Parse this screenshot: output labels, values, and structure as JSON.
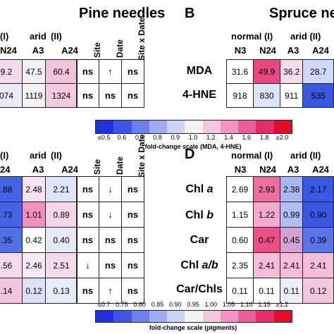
{
  "titles": {
    "left": "Pine needles",
    "right": "Spruce ne"
  },
  "panel_letters": {
    "b": "B",
    "d": "D"
  },
  "pine_top": {
    "group_headers": [
      "(I)",
      "arid",
      "(II)"
    ],
    "col_headers": [
      "N24",
      "A3",
      "A24"
    ],
    "rows": [
      [
        {
          "v": "9.2",
          "c": "#f6d9ea"
        },
        {
          "v": "47.5",
          "c": "#f2f2f8"
        },
        {
          "v": "60.4",
          "c": "#f3c2dc"
        }
      ],
      [
        {
          "v": "074",
          "c": "#eaeaf8"
        },
        {
          "v": "1119",
          "c": "#f7f1f6"
        },
        {
          "v": "1324",
          "c": "#f3cadf"
        }
      ]
    ]
  },
  "stat_top": {
    "headers": [
      "Site",
      "Date",
      "Site x Date"
    ],
    "rows": [
      [
        "ns",
        "↑",
        "ns"
      ],
      [
        "ns",
        "ns",
        "ns"
      ]
    ]
  },
  "spruce_top": {
    "group_headers": [
      {
        "label": "normal",
        "num": "(I)"
      },
      {
        "label": "arid",
        "num": "(II)"
      }
    ],
    "col_headers": [
      "N3",
      "N24",
      "A3",
      "A24"
    ],
    "row_labels": [
      "MDA",
      "4-HNE"
    ],
    "rows": [
      [
        {
          "v": "31.6",
          "c": "#ffffff"
        },
        {
          "v": "49.9",
          "c": "#e8487f"
        },
        {
          "v": "36.2",
          "c": "#f8dcea"
        },
        {
          "v": "28.7",
          "c": "#cfd8f6"
        }
      ],
      [
        {
          "v": "918",
          "c": "#ffffff"
        },
        {
          "v": "830",
          "c": "#dee4f7"
        },
        {
          "v": "911",
          "c": "#ffffff"
        },
        {
          "v": "535",
          "c": "#3a57e0"
        }
      ]
    ]
  },
  "scale_top": {
    "ticks": [
      "≤0.5",
      "0.6",
      "0.7",
      "0.8",
      "0.9",
      "1.0",
      "1.2",
      "1.4",
      "1.6",
      "1.8",
      "≥2.0"
    ],
    "label": "fold-change scale (MDA, 4-HNE)",
    "colors": [
      "#2233dd",
      "#3f55e6",
      "#6b80ee",
      "#9cabf2",
      "#cdd5f7",
      "#f3f3f3",
      "#f6c6df",
      "#f094c2",
      "#eb5f99",
      "#e62d6b",
      "#e30c2a"
    ]
  },
  "pine_bottom": {
    "group_headers": [
      "(I)",
      "arid",
      "(II)"
    ],
    "col_headers": [
      "24",
      "A3",
      "A24"
    ],
    "rows": [
      [
        {
          "v": ".88",
          "c": "#4563e4"
        },
        {
          "v": "2.48",
          "c": "#f7e4ee"
        },
        {
          "v": "2.21",
          "c": "#dfe5f8"
        }
      ],
      [
        {
          "v": ".73",
          "c": "#4563e4"
        },
        {
          "v": "1.01",
          "c": "#f190bf"
        },
        {
          "v": "0.89",
          "c": "#f5d6e6"
        }
      ],
      [
        {
          "v": ".35",
          "c": "#5470e6"
        },
        {
          "v": "0.42",
          "c": "#ffffff"
        },
        {
          "v": "0.40",
          "c": "#e6eaf8"
        }
      ],
      [
        {
          "v": ".56",
          "c": "#f4dbe8"
        },
        {
          "v": "2.46",
          "c": "#f8ebf3"
        },
        {
          "v": "2.51",
          "c": "#f5dbe9"
        }
      ],
      [
        {
          "v": ".14",
          "c": "#f3c4dd"
        },
        {
          "v": "0.12",
          "c": "#d9e0f7"
        },
        {
          "v": "0.13",
          "c": "#e8ecf9"
        }
      ]
    ]
  },
  "stat_bottom": {
    "headers": [
      "Site",
      "Date",
      "Site x Date"
    ],
    "rows": [
      [
        "ns",
        "↓",
        "ns"
      ],
      [
        "ns",
        "↓",
        "ns"
      ],
      [
        "ns",
        "ns",
        "ns"
      ],
      [
        "↓",
        "ns",
        "ns"
      ],
      [
        "ns",
        "↑",
        "ns"
      ]
    ]
  },
  "spruce_bottom": {
    "group_headers": [
      {
        "label": "normal",
        "num": "(I)"
      },
      {
        "label": "arid",
        "num": "(II)"
      }
    ],
    "col_headers": [
      "N3",
      "N24",
      "A3",
      "A24"
    ],
    "row_labels": [
      {
        "main": "Chl ",
        "ital": "a"
      },
      {
        "main": "Chl ",
        "ital": "b"
      },
      {
        "main": "Car",
        "ital": ""
      },
      {
        "main": "Chl ",
        "ital": "a/b"
      },
      {
        "main": "Car/Chls",
        "ital": ""
      }
    ],
    "rows": [
      [
        {
          "v": "2.69",
          "c": "#ffffff"
        },
        {
          "v": "2.93",
          "c": "#ee6e9f"
        },
        {
          "v": "2.38",
          "c": "#aab7f1"
        },
        {
          "v": "2.17",
          "c": "#3b59e0"
        }
      ],
      [
        {
          "v": "1.15",
          "c": "#ffffff"
        },
        {
          "v": "1.22",
          "c": "#f3a9cc"
        },
        {
          "v": "0.99",
          "c": "#b2bdf2"
        },
        {
          "v": "0.90",
          "c": "#3b59e0"
        }
      ],
      [
        {
          "v": "0.60",
          "c": "#ffffff"
        },
        {
          "v": "0.47",
          "c": "#ea4f86"
        },
        {
          "v": "0.45",
          "c": "#d3a2d0"
        },
        {
          "v": "0.39",
          "c": "#5b74e7"
        }
      ],
      [
        {
          "v": "2.35",
          "c": "#ffffff"
        },
        {
          "v": "2.41",
          "c": "#f3bdd9"
        },
        {
          "v": "2.41",
          "c": "#f3bdd9"
        },
        {
          "v": "2.41",
          "c": "#f3bdd9"
        }
      ],
      [
        {
          "v": "0.11",
          "c": "#ffffff"
        },
        {
          "v": "0.11",
          "c": "#ffffff"
        },
        {
          "v": "0.11",
          "c": "#eceff9"
        },
        {
          "v": "0.12",
          "c": "#f3c8df"
        }
      ]
    ]
  },
  "scale_bottom": {
    "ticks": [
      "≤0.7",
      "0.75",
      "0.80",
      "0.85",
      "0.90",
      "0.95",
      "1.00",
      "1.05",
      "1.10",
      "1.15",
      "≥1.2"
    ],
    "label": "fold-change scale (pigments)",
    "colors": [
      "#2233dd",
      "#3f55e6",
      "#6b80ee",
      "#9cabf2",
      "#cdd5f7",
      "#f3f3f3",
      "#f6c6df",
      "#f094c2",
      "#eb5f99",
      "#e62d6b",
      "#e30c2a"
    ]
  }
}
